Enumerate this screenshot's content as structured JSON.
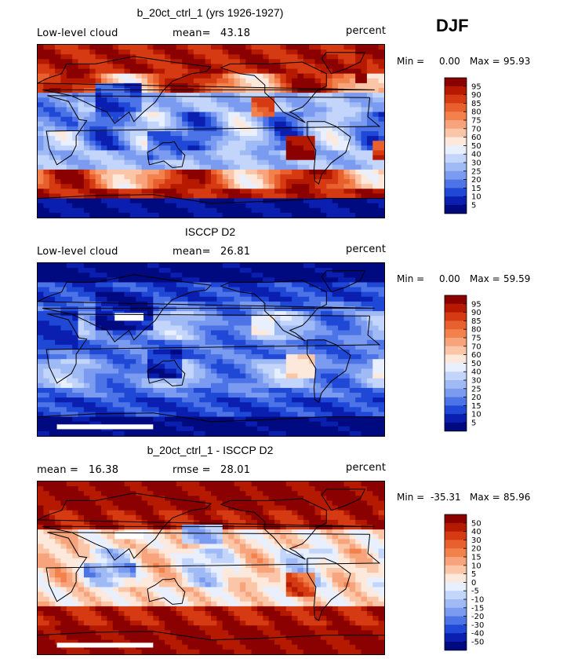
{
  "season": "DJF",
  "panels": [
    {
      "title": "b_20ct_ctrl_1 (yrs 1926-1927)",
      "left_label": "Low-level cloud",
      "center_label": "mean=",
      "center_value": "43.18",
      "right_label": "percent",
      "min_label": "Min =",
      "min_value": "0.00",
      "max_label": "Max =",
      "max_value": "95.93",
      "colormap": "absolute",
      "pattern": "model"
    },
    {
      "title": "ISCCP D2",
      "left_label": "Low-level cloud",
      "center_label": "mean=",
      "center_value": "26.81",
      "right_label": "percent",
      "min_label": "Min =",
      "min_value": "0.00",
      "max_label": "Max =",
      "max_value": "59.59",
      "colormap": "absolute",
      "pattern": "obs"
    },
    {
      "title": "b_20ct_ctrl_1 - ISCCP D2",
      "left_label": "mean =",
      "left_value": "16.38",
      "center_label": "rmse =",
      "center_value": "28.01",
      "right_label": "percent",
      "min_label": "Min =",
      "min_value": "-35.31",
      "max_label": "Max =",
      "max_value": "85.96",
      "colormap": "difference",
      "pattern": "diff"
    }
  ],
  "colorbars": {
    "absolute": {
      "labels": [
        "95",
        "90",
        "85",
        "80",
        "75",
        "70",
        "60",
        "50",
        "40",
        "30",
        "25",
        "20",
        "15",
        "10",
        "5"
      ],
      "colors": [
        "#8b0000",
        "#b51a00",
        "#d53a12",
        "#e8602e",
        "#f2814c",
        "#f7a47c",
        "#fbc6a8",
        "#fde8dc",
        "#e8efff",
        "#c3d5fb",
        "#9fbaf5",
        "#7b9bf0",
        "#4d74e6",
        "#2048d6",
        "#0a1fb0",
        "#000a80"
      ]
    },
    "difference": {
      "labels": [
        "50",
        "40",
        "30",
        "20",
        "15",
        "10",
        "5",
        "0",
        "-5",
        "-10",
        "-15",
        "-20",
        "-30",
        "-40",
        "-50"
      ],
      "colors": [
        "#8b0000",
        "#b51a00",
        "#d53a12",
        "#e8602e",
        "#f2814c",
        "#f7a47c",
        "#fbc6a8",
        "#fde8dc",
        "#e8efff",
        "#c3d5fb",
        "#9fbaf5",
        "#7b9bf0",
        "#4d74e6",
        "#2048d6",
        "#0a1fb0",
        "#000a80"
      ]
    }
  }
}
